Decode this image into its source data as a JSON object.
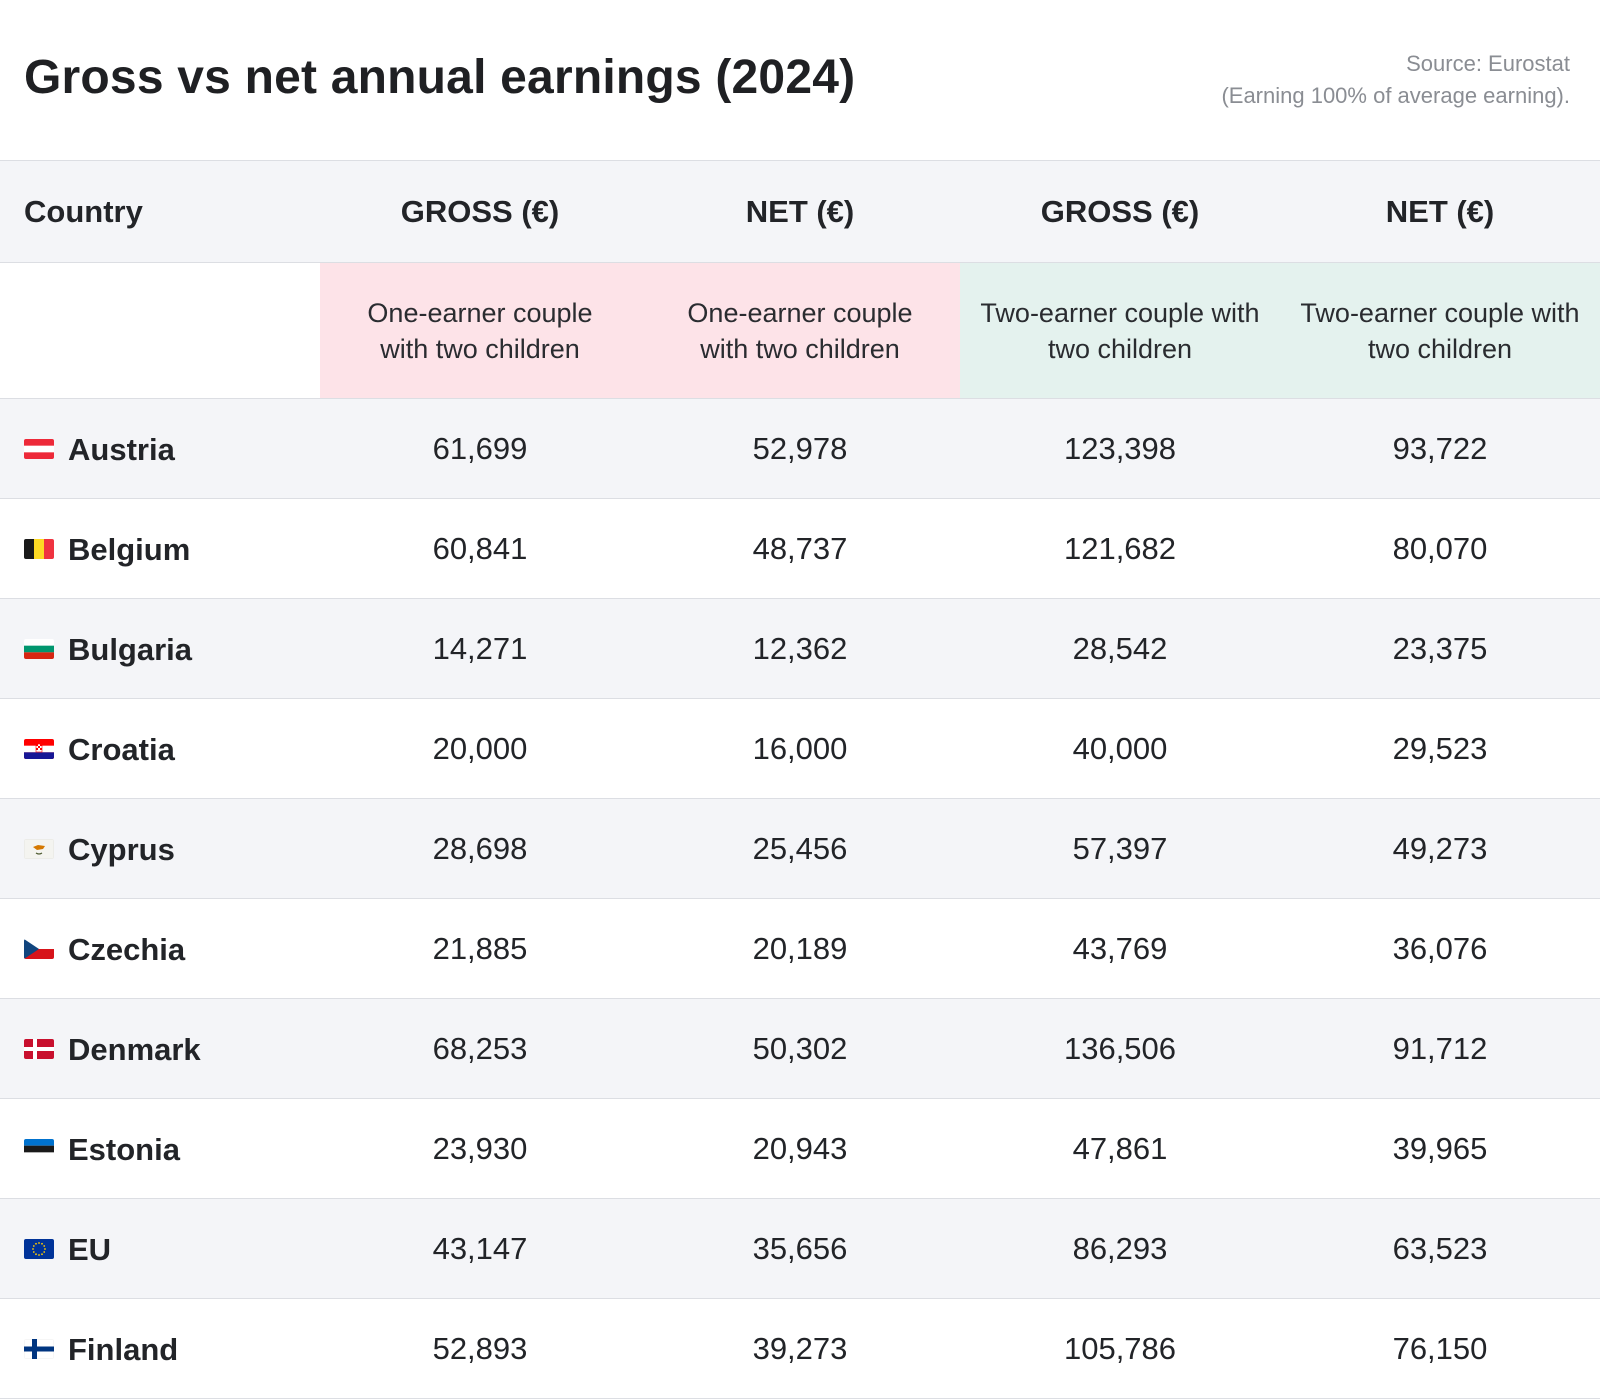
{
  "title": "Gross vs net annual earnings (2024)",
  "source_line1": "Source: Eurostat",
  "source_line2": "(Earning 100% of average earning).",
  "colors": {
    "pink": "#fde3e8",
    "green": "#e4f2ee",
    "stripe": "#f4f5f8"
  },
  "chart_data": {
    "type": "table",
    "title": "Gross vs net annual earnings (2024)",
    "columns": [
      "Country",
      "GROSS (€)",
      "NET (€)",
      "GROSS (€)",
      "NET (€)"
    ],
    "subheaders": [
      "",
      "One-earner couple with two children",
      "One-earner couple with two children",
      "Two-earner couple with two children",
      "Two-earner couple with two children"
    ],
    "rows": [
      {
        "country": "Austria",
        "flag": "austria-flag",
        "values": [
          "61,699",
          "52,978",
          "123,398",
          "93,722"
        ]
      },
      {
        "country": "Belgium",
        "flag": "belgium-flag",
        "values": [
          "60,841",
          "48,737",
          "121,682",
          "80,070"
        ]
      },
      {
        "country": "Bulgaria",
        "flag": "bulgaria-flag",
        "values": [
          "14,271",
          "12,362",
          "28,542",
          "23,375"
        ]
      },
      {
        "country": "Croatia",
        "flag": "croatia-flag",
        "values": [
          "20,000",
          "16,000",
          "40,000",
          "29,523"
        ]
      },
      {
        "country": "Cyprus",
        "flag": "cyprus-flag",
        "values": [
          "28,698",
          "25,456",
          "57,397",
          "49,273"
        ]
      },
      {
        "country": "Czechia",
        "flag": "czechia-flag",
        "values": [
          "21,885",
          "20,189",
          "43,769",
          "36,076"
        ]
      },
      {
        "country": "Denmark",
        "flag": "denmark-flag",
        "values": [
          "68,253",
          "50,302",
          "136,506",
          "91,712"
        ]
      },
      {
        "country": "Estonia",
        "flag": "estonia-flag",
        "values": [
          "23,930",
          "20,943",
          "47,861",
          "39,965"
        ]
      },
      {
        "country": "EU",
        "flag": "eu-flag",
        "values": [
          "43,147",
          "35,656",
          "86,293",
          "63,523"
        ]
      },
      {
        "country": "Finland",
        "flag": "finland-flag",
        "values": [
          "52,893",
          "39,273",
          "105,786",
          "76,150"
        ]
      }
    ]
  }
}
